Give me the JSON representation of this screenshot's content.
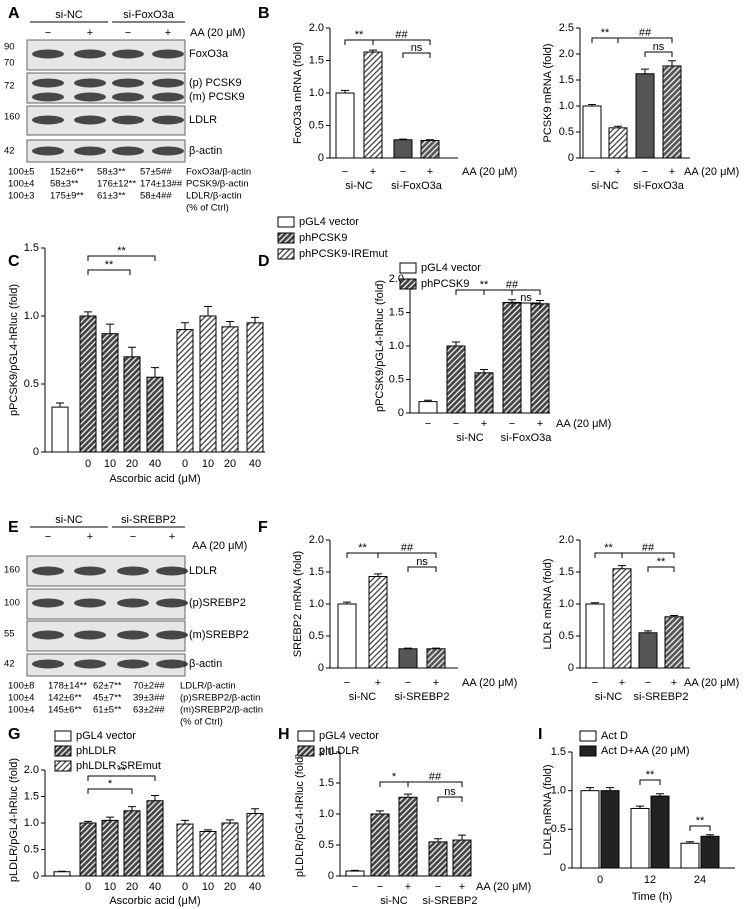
{
  "blots": [
    {
      "panel": "A",
      "groups": [
        "si-NC",
        "si-FoxO3a"
      ],
      "treatments": [
        "−",
        "+",
        "−",
        "+"
      ],
      "treatment_label": "AA (20 μM)",
      "rows": [
        {
          "markers": [
            "90",
            "70"
          ],
          "labels": [
            "FoxO3a"
          ]
        },
        {
          "markers": [
            "72"
          ],
          "labels": [
            "(p) PCSK9",
            "(m) PCSK9"
          ]
        },
        {
          "markers": [
            "160"
          ],
          "labels": [
            "LDLR"
          ]
        },
        {
          "markers": [
            "42"
          ],
          "labels": [
            "β-actin"
          ]
        }
      ],
      "quant": [
        {
          "values": [
            "100±5",
            "152±6**",
            "58±3**",
            "57±5##"
          ],
          "label": "FoxO3a/β-actin"
        },
        {
          "values": [
            "100±4",
            "58±3**",
            "176±12**",
            "174±13##"
          ],
          "label": "PCSK9/β-actin"
        },
        {
          "values": [
            "100±3",
            "175±9**",
            "61±3**",
            "58±4##"
          ],
          "label": "LDLR/β-actin"
        }
      ],
      "quant_note": "(% of Ctrl)"
    },
    {
      "panel": "E",
      "groups": [
        "si-NC",
        "si-SREBP2"
      ],
      "treatments": [
        "−",
        "+",
        "−",
        "+"
      ],
      "treatment_label": "AA (20 μM)",
      "rows": [
        {
          "markers": [
            "160"
          ],
          "labels": [
            "LDLR"
          ]
        },
        {
          "markers": [
            "100"
          ],
          "labels": [
            "(p)SREBP2"
          ]
        },
        {
          "markers": [
            "55"
          ],
          "labels": [
            "(m)SREBP2"
          ]
        },
        {
          "markers": [
            "42"
          ],
          "labels": [
            "β-actin"
          ]
        }
      ],
      "quant": [
        {
          "values": [
            "100±8",
            "178±14**",
            "62±7**",
            "70±2##"
          ],
          "label": "LDLR/β-actin"
        },
        {
          "values": [
            "100±4",
            "142±6**",
            "45±7**",
            "39±3##"
          ],
          "label": "(p)SREBP2/β-actin"
        },
        {
          "values": [
            "100±4",
            "145±6**",
            "61±5**",
            "63±2##"
          ],
          "label": "(m)SREBP2/β-actin"
        }
      ],
      "quant_note": "(% of Ctrl)"
    }
  ],
  "chart_data": [
    {
      "type": "bar",
      "panel": "B",
      "ylabel": "FoxO3a mRNA (fold)",
      "ylim": [
        0,
        2
      ],
      "yticks": [
        0,
        0.5,
        {
          "value": 1,
          "label": "1.0"
        },
        1.5,
        {
          "value": 2,
          "label": "2.0"
        }
      ],
      "categories": [
        "−",
        "+",
        "−",
        "+"
      ],
      "groups": [
        "si-NC",
        "si-FoxO3a"
      ],
      "x_note": "AA (20 μM)",
      "values": [
        1.0,
        1.63,
        0.28,
        0.27
      ],
      "errors": [
        0.04,
        0.03,
        0.01,
        0.01
      ],
      "colors": [
        "#ffffff",
        "#ffffff",
        "#555555",
        "#555555"
      ],
      "hatched": [
        false,
        true,
        false,
        true
      ],
      "annotations": [
        "**",
        "##",
        "ns"
      ]
    },
    {
      "type": "bar",
      "ylabel": "PCSK9 mRNA (fold)",
      "ylim": [
        0,
        2.5
      ],
      "yticks": [
        0,
        0.5,
        {
          "value": 1,
          "label": "1.0"
        },
        1.5,
        {
          "value": 2,
          "label": "2.0"
        },
        2.5
      ],
      "categories": [
        "−",
        "+",
        "−",
        "+"
      ],
      "groups": [
        "si-NC",
        "si-FoxO3a"
      ],
      "x_note": "AA (20 μM)",
      "values": [
        1.0,
        0.58,
        1.62,
        1.77
      ],
      "errors": [
        0.03,
        0.03,
        0.09,
        0.1
      ],
      "colors": [
        "#ffffff",
        "#ffffff",
        "#555555",
        "#555555"
      ],
      "hatched": [
        false,
        true,
        false,
        true
      ],
      "annotations": [
        "**",
        "##",
        "ns"
      ]
    },
    {
      "type": "bar",
      "panel": "C",
      "ylabel": "pPCSK9/pGL4-hRluc (fold)",
      "xlabel": "Ascorbic acid (μM)",
      "ylim": [
        0,
        1.5
      ],
      "yticks": [
        0,
        0.5,
        {
          "value": 1,
          "label": "1.0"
        },
        1.5
      ],
      "categories": [
        null,
        "0",
        "10",
        "20",
        "40",
        "0",
        "10",
        "20",
        "40"
      ],
      "series": [
        {
          "name": "pGL4 vector",
          "color": "#ffffff",
          "hatch": false,
          "values": [
            0.33,
            null,
            null,
            null,
            null,
            null,
            null,
            null,
            null
          ],
          "errors": [
            0.03,
            null,
            null,
            null,
            null,
            null,
            null,
            null,
            null
          ]
        },
        {
          "name": "phPCSK9",
          "color": "#444444",
          "hatch": true,
          "values": [
            null,
            1.0,
            0.87,
            0.7,
            0.55,
            null,
            null,
            null,
            null
          ],
          "errors": [
            null,
            0.03,
            0.07,
            0.07,
            0.07,
            null,
            null,
            null,
            null
          ]
        },
        {
          "name": "phPCSK9-IREmut",
          "color": "#ffffff",
          "hatch": true,
          "values": [
            null,
            null,
            null,
            null,
            null,
            0.9,
            1.0,
            0.92,
            0.95
          ],
          "errors": [
            null,
            null,
            null,
            null,
            null,
            0.05,
            0.07,
            0.04,
            0.04
          ]
        }
      ],
      "annotations": [
        "**",
        "**"
      ]
    },
    {
      "type": "bar",
      "panel": "D",
      "ylabel": "pPCSK9/pGL4-hRluc (fold)",
      "ylim": [
        0,
        2
      ],
      "yticks": [
        0,
        0.5,
        {
          "value": 1,
          "label": "1.0"
        },
        1.5,
        {
          "value": 2,
          "label": "2.0"
        }
      ],
      "categories": [
        "−",
        "−",
        "+",
        "−",
        "+"
      ],
      "groups": [
        "si-NC",
        "si-FoxO3a"
      ],
      "x_note": "AA (20 μM)",
      "series": [
        {
          "name": "pGL4 vector",
          "color": "#ffffff",
          "hatch": false,
          "values": [
            0.17,
            null,
            null,
            null,
            null
          ],
          "errors": [
            0.02,
            null,
            null,
            null,
            null
          ]
        },
        {
          "name": "phPCSK9",
          "color": "#444444",
          "hatch": true,
          "values": [
            null,
            1.0,
            0.6,
            1.65,
            1.63
          ],
          "errors": [
            null,
            0.06,
            0.05,
            0.04,
            0.05
          ]
        }
      ],
      "annotations": [
        "**",
        "##",
        "ns"
      ]
    },
    {
      "type": "bar",
      "panel": "F",
      "ylabel": "SREBP2 mRNA (fold)",
      "ylim": [
        0,
        2
      ],
      "yticks": [
        0,
        0.5,
        {
          "value": 1,
          "label": "1.0"
        },
        1.5,
        {
          "value": 2,
          "label": "2.0"
        }
      ],
      "categories": [
        "−",
        "+",
        "−",
        "+"
      ],
      "groups": [
        "si-NC",
        "si-SREBP2"
      ],
      "x_note": "AA (20 μM)",
      "values": [
        1.0,
        1.43,
        0.3,
        0.3
      ],
      "errors": [
        0.03,
        0.04,
        0.01,
        0.01
      ],
      "colors": [
        "#ffffff",
        "#ffffff",
        "#555555",
        "#555555"
      ],
      "hatched": [
        false,
        true,
        false,
        true
      ],
      "annotations": [
        "**",
        "##",
        "ns"
      ]
    },
    {
      "type": "bar",
      "ylabel": "LDLR mRNA (fold)",
      "ylim": [
        0,
        2
      ],
      "yticks": [
        0,
        0.5,
        {
          "value": 1,
          "label": "1.0"
        },
        1.5,
        {
          "value": 2,
          "label": "2.0"
        }
      ],
      "categories": [
        "−",
        "+",
        "−",
        "+"
      ],
      "groups": [
        "si-NC",
        "si-SREBP2"
      ],
      "x_note": "AA (20 μM)",
      "values": [
        1.0,
        1.55,
        0.55,
        0.8
      ],
      "errors": [
        0.02,
        0.05,
        0.03,
        0.02
      ],
      "colors": [
        "#ffffff",
        "#ffffff",
        "#555555",
        "#555555"
      ],
      "hatched": [
        false,
        true,
        false,
        true
      ],
      "annotations": [
        "**",
        "##",
        "**"
      ]
    },
    {
      "type": "bar",
      "panel": "G",
      "ylabel": "pLDLR/pGL4-hRluc (fold)",
      "xlabel": "Ascorbic acid (μM)",
      "ylim": [
        0,
        2
      ],
      "yticks": [
        0,
        0.5,
        {
          "value": 1,
          "label": "1.0"
        },
        1.5,
        {
          "value": 2,
          "label": "2.0"
        }
      ],
      "categories": [
        null,
        "0",
        "10",
        "20",
        "40",
        "0",
        "10",
        "20",
        "40"
      ],
      "series": [
        {
          "name": "pGL4 vector",
          "color": "#ffffff",
          "hatch": false,
          "values": [
            0.08,
            null,
            null,
            null,
            null,
            null,
            null,
            null,
            null
          ],
          "errors": [
            0.01,
            null,
            null,
            null,
            null,
            null,
            null,
            null,
            null
          ]
        },
        {
          "name": "phLDLR",
          "color": "#444444",
          "hatch": true,
          "values": [
            null,
            1.0,
            1.05,
            1.23,
            1.42,
            null,
            null,
            null,
            null
          ],
          "errors": [
            null,
            0.03,
            0.06,
            0.08,
            0.1,
            null,
            null,
            null,
            null
          ]
        },
        {
          "name": "phLDLR-SREmut",
          "color": "#ffffff",
          "hatch": true,
          "values": [
            null,
            null,
            null,
            null,
            null,
            0.98,
            0.84,
            1.0,
            1.18
          ],
          "errors": [
            null,
            null,
            null,
            null,
            null,
            0.07,
            0.03,
            0.06,
            0.09
          ]
        }
      ],
      "annotations": [
        "**",
        "*"
      ]
    },
    {
      "type": "bar",
      "panel": "H",
      "ylabel": "pLDLR/pGL4-hRluc (fold)",
      "ylim": [
        0,
        2
      ],
      "yticks": [
        0,
        0.5,
        {
          "value": 1,
          "label": "1.0"
        },
        1.5,
        {
          "value": 2,
          "label": "2.0"
        }
      ],
      "categories": [
        "−",
        "−",
        "+",
        "−",
        "+"
      ],
      "groups": [
        "si-NC",
        "si-SREBP2"
      ],
      "x_note": "AA (20 μM)",
      "series": [
        {
          "name": "pGL4 vector",
          "color": "#ffffff",
          "hatch": false,
          "values": [
            0.08,
            null,
            null,
            null,
            null
          ],
          "errors": [
            0.01,
            null,
            null,
            null,
            null
          ]
        },
        {
          "name": "phLDLR",
          "color": "#444444",
          "hatch": true,
          "values": [
            null,
            1.0,
            1.27,
            0.55,
            0.58
          ],
          "errors": [
            null,
            0.05,
            0.05,
            0.05,
            0.08
          ]
        }
      ],
      "annotations": [
        "*",
        "##",
        "ns"
      ]
    },
    {
      "type": "bar",
      "panel": "I",
      "ylabel": "LDLR mRNA (fold)",
      "xlabel": "Time (h)",
      "ylim": [
        0,
        1.5
      ],
      "yticks": [
        0,
        0.5,
        {
          "value": 1,
          "label": "1.0"
        },
        1.5
      ],
      "categories": [
        "0",
        "12",
        "24"
      ],
      "series": [
        {
          "name": "Act D",
          "color": "#ffffff",
          "hatch": false,
          "values": [
            1.0,
            0.77,
            0.32
          ],
          "errors": [
            0.04,
            0.03,
            0.02
          ]
        },
        {
          "name": "Act D+AA (20 μM)",
          "color": "#222222",
          "hatch": false,
          "values": [
            1.0,
            0.93,
            0.41
          ],
          "errors": [
            0.04,
            0.03,
            0.02
          ]
        }
      ],
      "annotations": [
        "**",
        "**"
      ]
    }
  ]
}
